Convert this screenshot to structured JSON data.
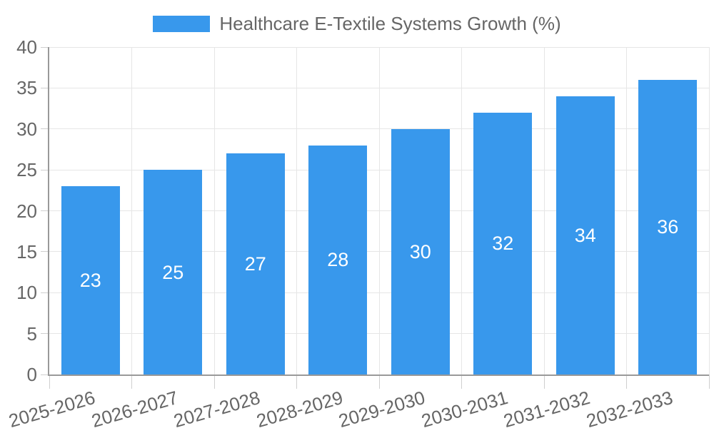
{
  "chart_data": {
    "type": "bar",
    "legend_label": "Healthcare E-Textile Systems Growth (%)",
    "legend_position": "top",
    "categories": [
      "2025-2026",
      "2026-2027",
      "2027-2028",
      "2028-2029",
      "2029-2030",
      "2030-2031",
      "2031-2032",
      "2032-2033"
    ],
    "values": [
      23,
      25,
      27,
      28,
      30,
      32,
      34,
      36
    ],
    "bar_value_labels": [
      "23",
      "25",
      "27",
      "28",
      "30",
      "32",
      "34",
      "36"
    ],
    "xlabel": "",
    "ylabel": "",
    "ylim": [
      0,
      40
    ],
    "yticks": [
      0,
      5,
      10,
      15,
      20,
      25,
      30,
      35,
      40
    ],
    "grid": true,
    "colors": {
      "bar_fill": "#3898ec",
      "bar_label_text": "#ffffff",
      "axis_text": "#666666",
      "gridline": "#e6e6e6",
      "axis_line": "#999999",
      "tick_mark": "#cfcfcf",
      "background": "#ffffff"
    }
  }
}
